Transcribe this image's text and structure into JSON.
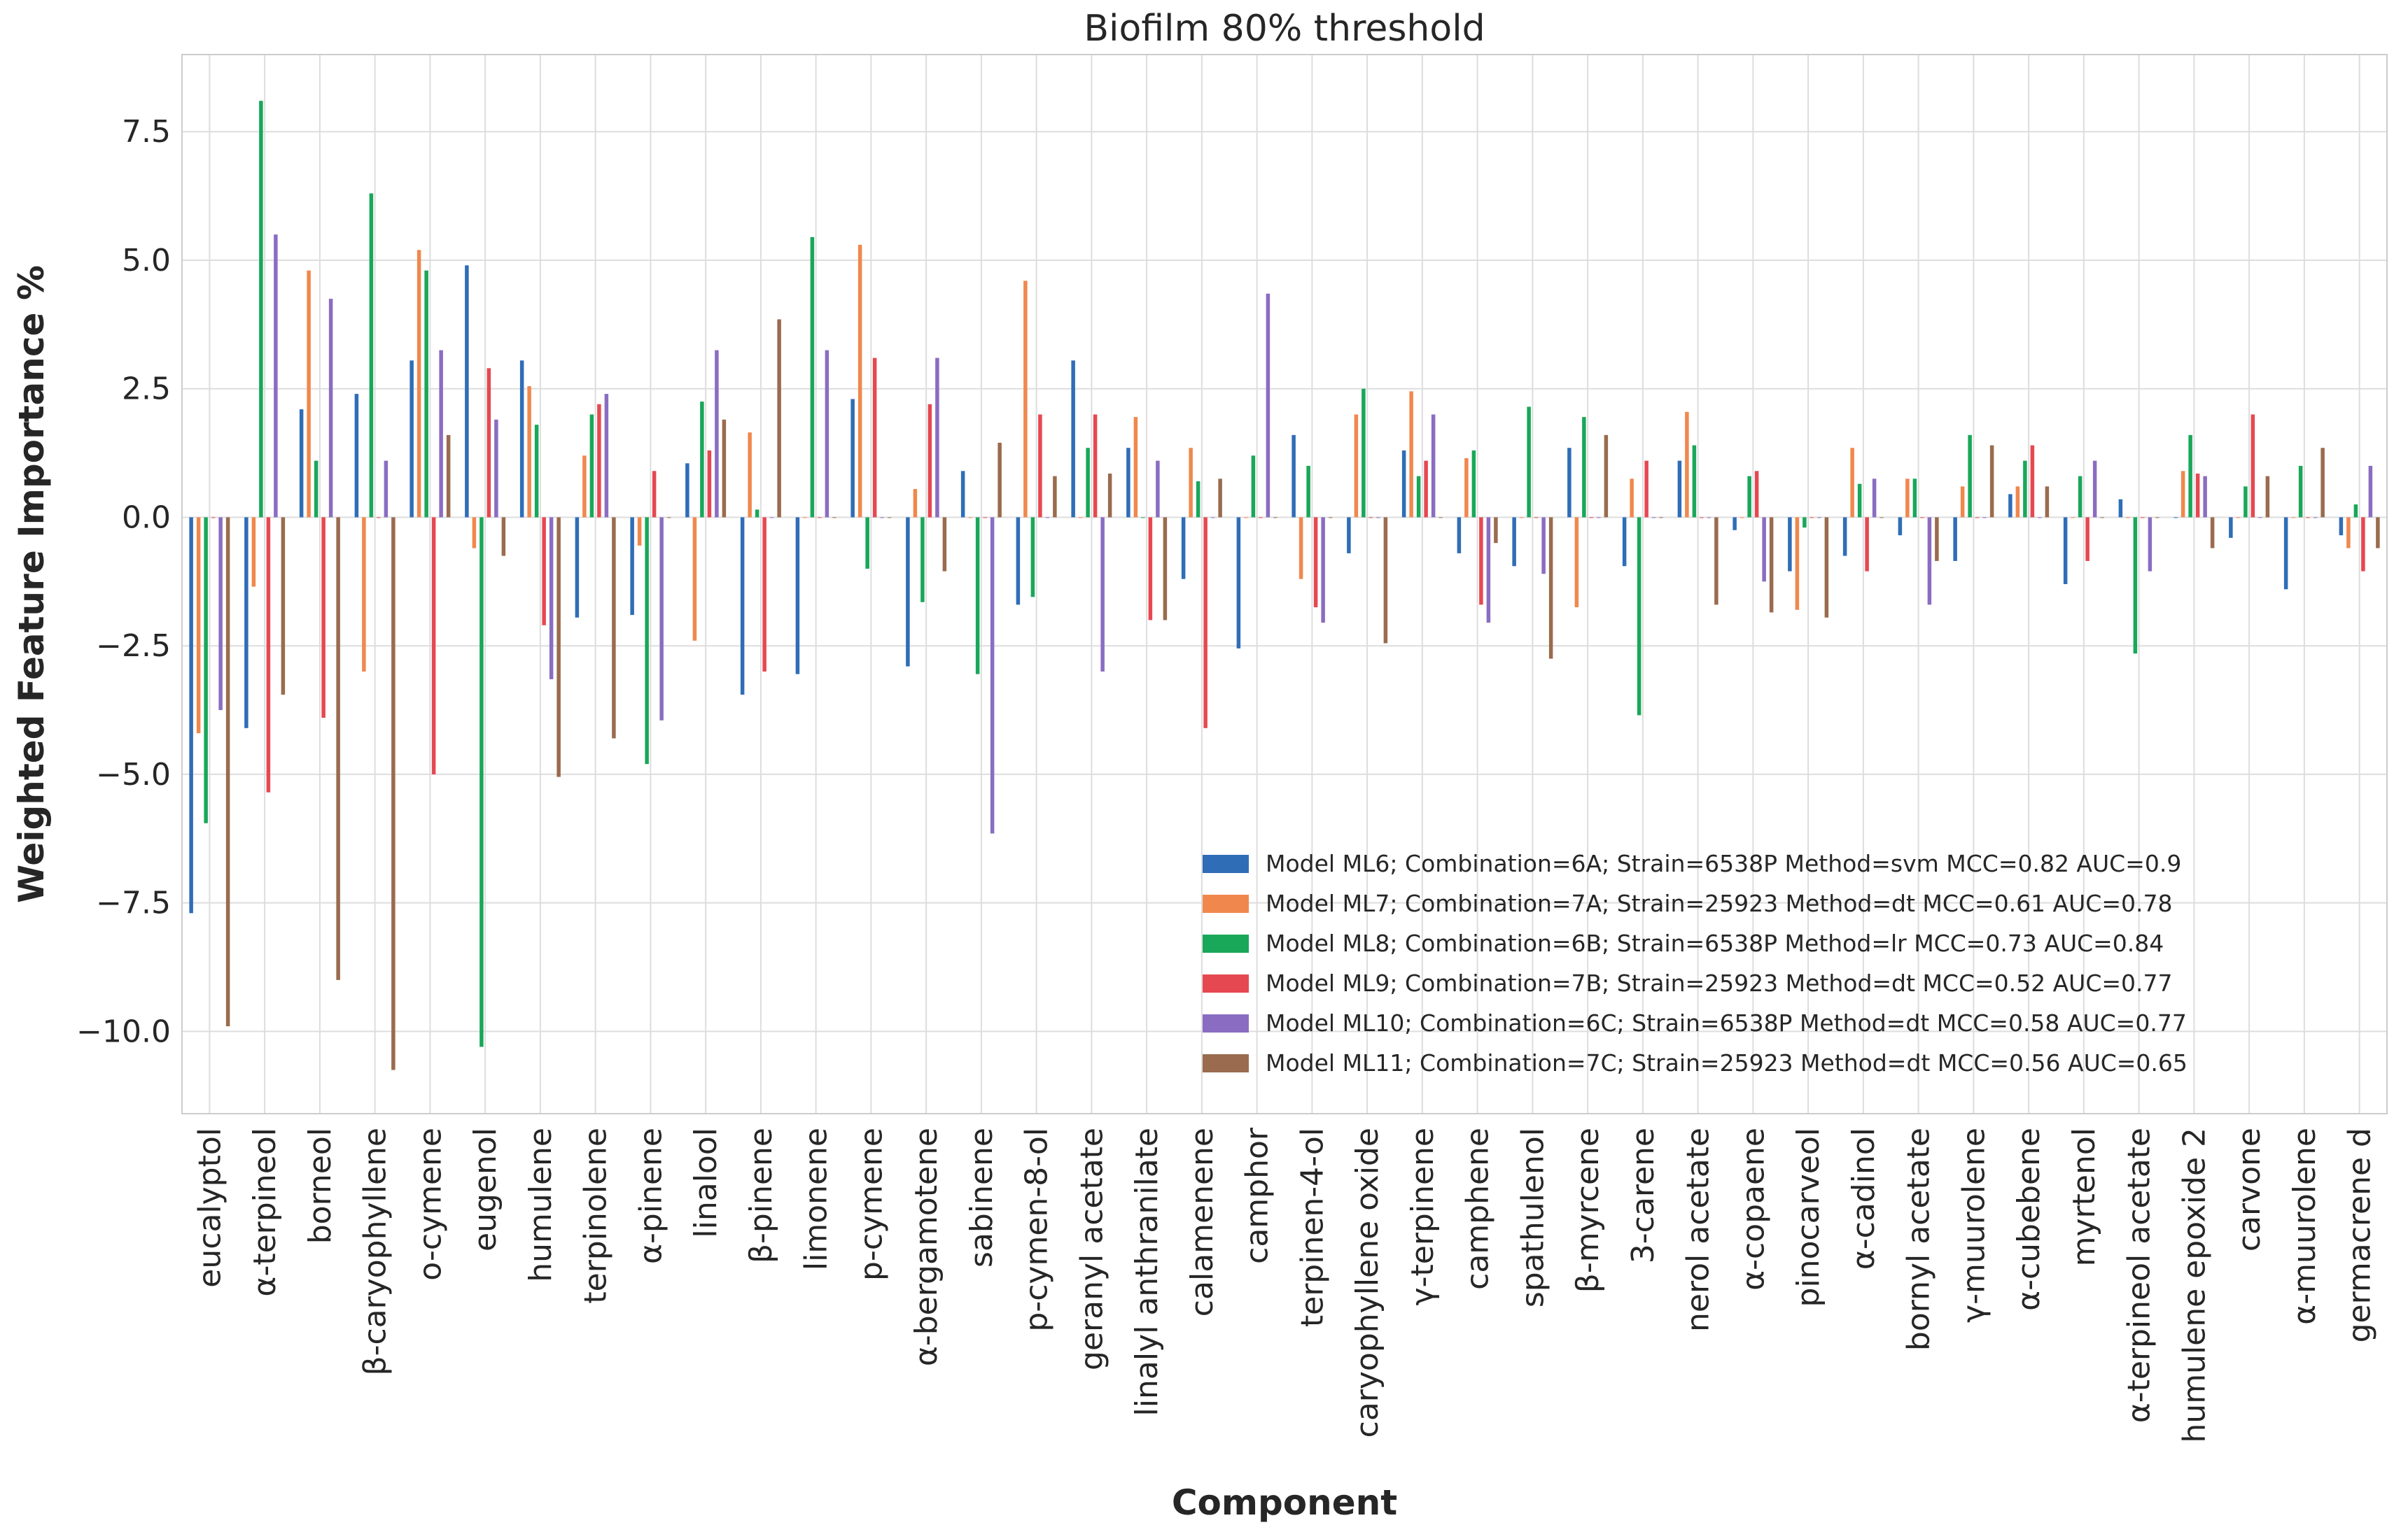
{
  "chart_data": {
    "type": "bar",
    "title": "Biofilm 80% threshold",
    "xlabel": "Component",
    "ylabel": "Weighted Feature Importance %",
    "ylim": [
      -11.6,
      9.0
    ],
    "yticks": [
      7.5,
      5.0,
      2.5,
      0.0,
      -2.5,
      -5.0,
      -7.5,
      -10.0
    ],
    "ytick_labels": [
      "7.5",
      "5.0",
      "2.5",
      "0.0",
      "−2.5",
      "−5.0",
      "−7.5",
      "−10.0"
    ],
    "grid": true,
    "legend_position": "bottom-right",
    "categories": [
      "eucalyptol",
      "α-terpineol",
      "borneol",
      "β-caryophyllene",
      "o-cymene",
      "eugenol",
      "humulene",
      "terpinolene",
      "α-pinene",
      "linalool",
      "β-pinene",
      "limonene",
      "p-cymene",
      "α-bergamotene",
      "sabinene",
      "p-cymen-8-ol",
      "geranyl acetate",
      "linalyl anthranilate",
      "calamenene",
      "camphor",
      "terpinen-4-ol",
      "caryophyllene oxide",
      "γ-terpinene",
      "camphene",
      "spathulenol",
      "β-myrcene",
      "3-carene",
      "nerol acetate",
      "α-copaene",
      "pinocarveol",
      "α-cadinol",
      "bornyl acetate",
      "γ-muurolene",
      "α-cubebene",
      "myrtenol",
      "α-terpineol acetate",
      "humulene epoxide 2",
      "carvone",
      "α-muurolene",
      "germacrene d"
    ],
    "series": [
      {
        "name": "Model ML6; Combination=6A; Strain=6538P Method=svm MCC=0.82 AUC=0.9",
        "color": "#2f6db7",
        "values": [
          -7.7,
          -4.1,
          2.1,
          2.4,
          3.05,
          4.9,
          3.05,
          -1.95,
          -1.9,
          1.05,
          -3.45,
          -3.05,
          2.3,
          -2.9,
          0.9,
          -1.7,
          3.05,
          1.35,
          -1.2,
          -2.55,
          1.6,
          -0.7,
          1.3,
          -0.7,
          -0.95,
          1.35,
          -0.95,
          1.1,
          -0.25,
          -1.05,
          -0.75,
          -0.35,
          -0.85,
          0.45,
          -1.3,
          0.35,
          0.0,
          -0.4,
          -1.4,
          -0.35
        ]
      },
      {
        "name": "Model ML7; Combination=7A; Strain=25923 Method=dt MCC=0.61 AUC=0.78",
        "color": "#f0884d",
        "values": [
          -4.2,
          -1.35,
          4.8,
          -3.0,
          5.2,
          -0.6,
          2.55,
          1.2,
          -0.55,
          -2.4,
          1.65,
          0.0,
          5.3,
          0.55,
          0.0,
          4.6,
          0.0,
          1.95,
          1.35,
          0.0,
          -1.2,
          2.0,
          2.45,
          1.15,
          0.0,
          -1.75,
          0.75,
          2.05,
          0.0,
          -1.8,
          1.35,
          0.75,
          0.6,
          0.6,
          0.0,
          0.0,
          0.9,
          0.0,
          0.0,
          -0.6
        ]
      },
      {
        "name": "Model ML8; Combination=6B; Strain=6538P Method=lr MCC=0.73 AUC=0.84",
        "color": "#19a75a",
        "values": [
          -5.95,
          8.1,
          1.1,
          6.3,
          4.8,
          -10.3,
          1.8,
          2.0,
          -4.8,
          2.25,
          0.15,
          5.45,
          -1.0,
          -1.65,
          -3.05,
          -1.55,
          1.35,
          0.0,
          0.7,
          1.2,
          1.0,
          2.5,
          0.8,
          1.3,
          2.15,
          1.95,
          -3.85,
          1.4,
          0.8,
          -0.2,
          0.65,
          0.75,
          1.6,
          1.1,
          0.8,
          -2.65,
          1.6,
          0.6,
          1.0,
          0.25
        ]
      },
      {
        "name": "Model ML9; Combination=7B; Strain=25923 Method=dt MCC=0.52 AUC=0.77",
        "color": "#e64851",
        "values": [
          0.0,
          -5.35,
          -3.9,
          0.0,
          -5.0,
          2.9,
          -2.1,
          2.2,
          0.9,
          1.3,
          -3.0,
          0.0,
          3.1,
          2.2,
          0.0,
          2.0,
          2.0,
          -2.0,
          -4.1,
          0.0,
          -1.75,
          0.0,
          1.1,
          -1.7,
          0.0,
          0.0,
          1.1,
          0.0,
          0.9,
          0.0,
          -1.05,
          0.0,
          0.0,
          1.4,
          -0.85,
          0.0,
          0.85,
          2.0,
          0.0,
          -1.05
        ]
      },
      {
        "name": "Model ML10; Combination=6C; Strain=6538P Method=dt MCC=0.58 AUC=0.77",
        "color": "#8a6dc2",
        "values": [
          -3.75,
          5.5,
          4.25,
          1.1,
          3.25,
          1.9,
          -3.15,
          2.4,
          -3.95,
          3.25,
          0.0,
          3.25,
          0.0,
          3.1,
          -6.15,
          0.0,
          -3.0,
          1.1,
          0.0,
          4.35,
          -2.05,
          0.0,
          2.0,
          -2.05,
          -1.1,
          0.0,
          0.0,
          0.0,
          -1.25,
          0.0,
          0.75,
          -1.7,
          0.0,
          0.0,
          1.1,
          -1.05,
          0.8,
          0.0,
          0.0,
          1.0
        ]
      },
      {
        "name": "Model ML11; Combination=7C; Strain=25923 Method=dt MCC=0.56 AUC=0.65",
        "color": "#9a6b4e",
        "values": [
          -9.9,
          -3.45,
          -9.0,
          -10.75,
          1.6,
          -0.75,
          -5.05,
          -4.3,
          0.0,
          1.9,
          3.85,
          0.0,
          0.0,
          -1.05,
          1.45,
          0.8,
          0.85,
          -2.0,
          0.75,
          0.0,
          0.0,
          -2.45,
          0.0,
          -0.5,
          -2.75,
          1.6,
          0.0,
          -1.7,
          -1.85,
          -1.95,
          0.0,
          -0.85,
          1.4,
          0.6,
          0.0,
          0.0,
          -0.6,
          0.8,
          1.35,
          -0.6
        ]
      }
    ]
  }
}
